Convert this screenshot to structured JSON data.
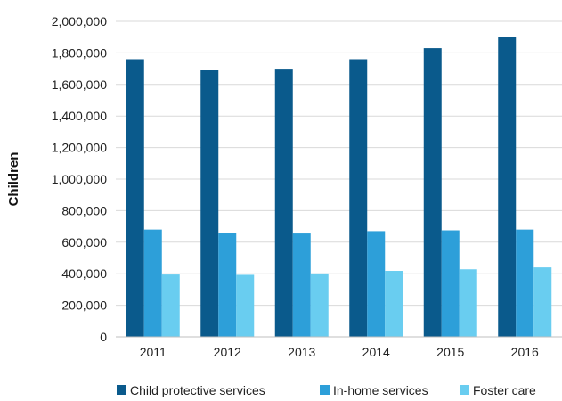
{
  "chart_data": {
    "type": "bar",
    "categories": [
      "2011",
      "2012",
      "2013",
      "2014",
      "2015",
      "2016"
    ],
    "series": [
      {
        "name": "Child protective services",
        "color": "#0a5a8c",
        "values": [
          1760000,
          1690000,
          1700000,
          1760000,
          1830000,
          1900000
        ]
      },
      {
        "name": "In-home services",
        "color": "#2d9fd9",
        "values": [
          680000,
          660000,
          655000,
          670000,
          675000,
          680000
        ]
      },
      {
        "name": "Foster care",
        "color": "#69cdf0",
        "values": [
          395000,
          393000,
          402000,
          418000,
          428000,
          440000
        ]
      }
    ],
    "ylabel": "Children",
    "xlabel": "",
    "ylim": [
      0,
      2000000
    ],
    "yticks": [
      0,
      200000,
      400000,
      600000,
      800000,
      1000000,
      1200000,
      1400000,
      1600000,
      1800000,
      2000000
    ],
    "ytick_labels": [
      "0",
      "200,000",
      "400,000",
      "600,000",
      "800,000",
      "1,000,000",
      "1,200,000",
      "1,400,000",
      "1,600,000",
      "1,800,000",
      "2,000,000"
    ],
    "grid": true,
    "legend_position": "bottom"
  }
}
